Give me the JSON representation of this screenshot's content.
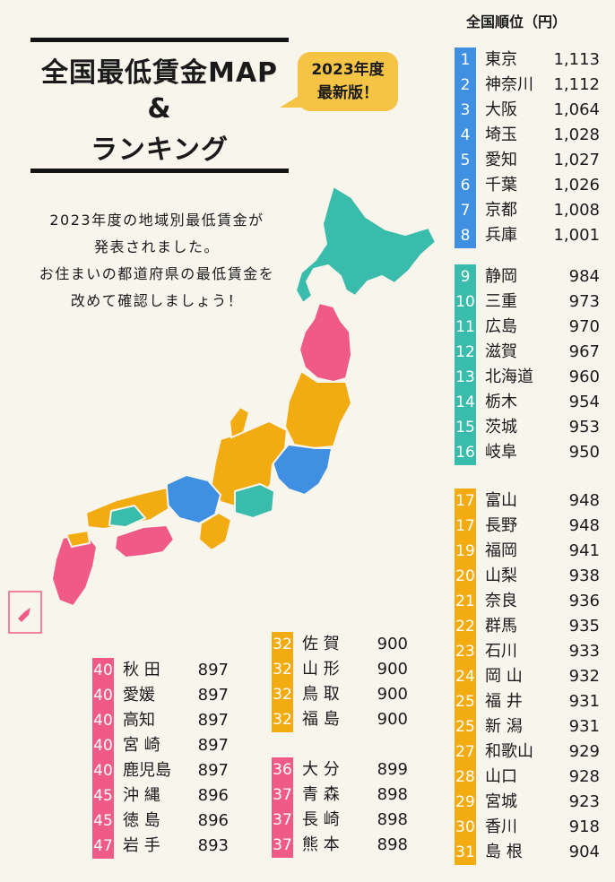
{
  "header": {
    "title_line1": "全国最低賃金MAP",
    "title_line2": "&",
    "title_line3": "ランキング",
    "badge_line1": "2023年度",
    "badge_line2": "最新版！"
  },
  "description": {
    "line1": "2023年度の地域別最低賃金が",
    "line2": "発表されました。",
    "line3": "お住まいの都道府県の最低賃金を",
    "line4": "改めて確認しましょう！"
  },
  "ranking_title": "全国順位（円）",
  "colors": {
    "blue": "#3f8fe3",
    "teal": "#39bcab",
    "orange": "#f3ab12",
    "pink": "#f05a87",
    "background": "#f8f5ed"
  },
  "groups": {
    "blue": [
      {
        "rank": "1",
        "pref": "東京",
        "wage": "1,113"
      },
      {
        "rank": "2",
        "pref": "神奈川",
        "wage": "1,112"
      },
      {
        "rank": "3",
        "pref": "大阪",
        "wage": "1,064"
      },
      {
        "rank": "4",
        "pref": "埼玉",
        "wage": "1,028"
      },
      {
        "rank": "5",
        "pref": "愛知",
        "wage": "1,027"
      },
      {
        "rank": "6",
        "pref": "千葉",
        "wage": "1,026"
      },
      {
        "rank": "7",
        "pref": "京都",
        "wage": "1,008"
      },
      {
        "rank": "8",
        "pref": "兵庫",
        "wage": "1,001"
      }
    ],
    "teal": [
      {
        "rank": "9",
        "pref": "静岡",
        "wage": "984"
      },
      {
        "rank": "10",
        "pref": "三重",
        "wage": "973"
      },
      {
        "rank": "11",
        "pref": "広島",
        "wage": "970"
      },
      {
        "rank": "12",
        "pref": "滋賀",
        "wage": "967"
      },
      {
        "rank": "13",
        "pref": "北海道",
        "wage": "960"
      },
      {
        "rank": "14",
        "pref": "栃木",
        "wage": "954"
      },
      {
        "rank": "15",
        "pref": "茨城",
        "wage": "953"
      },
      {
        "rank": "16",
        "pref": "岐阜",
        "wage": "950"
      }
    ],
    "orange_right": [
      {
        "rank": "17",
        "pref": "富山",
        "wage": "948"
      },
      {
        "rank": "17",
        "pref": "長野",
        "wage": "948"
      },
      {
        "rank": "19",
        "pref": "福岡",
        "wage": "941"
      },
      {
        "rank": "20",
        "pref": "山梨",
        "wage": "938"
      },
      {
        "rank": "21",
        "pref": "奈良",
        "wage": "936"
      },
      {
        "rank": "22",
        "pref": "群馬",
        "wage": "935"
      },
      {
        "rank": "23",
        "pref": "石川",
        "wage": "933"
      },
      {
        "rank": "24",
        "pref": "岡 山",
        "wage": "932"
      },
      {
        "rank": "25",
        "pref": "福 井",
        "wage": "931"
      },
      {
        "rank": "25",
        "pref": "新 潟",
        "wage": "931"
      },
      {
        "rank": "27",
        "pref": "和歌山",
        "wage": "929"
      },
      {
        "rank": "28",
        "pref": "山口",
        "wage": "928"
      },
      {
        "rank": "29",
        "pref": "宮城",
        "wage": "923"
      },
      {
        "rank": "30",
        "pref": "香川",
        "wage": "918"
      },
      {
        "rank": "31",
        "pref": "島 根",
        "wage": "904"
      }
    ],
    "orange_mid": [
      {
        "rank": "32",
        "pref": "佐 賀",
        "wage": "900"
      },
      {
        "rank": "32",
        "pref": "山 形",
        "wage": "900"
      },
      {
        "rank": "32",
        "pref": "鳥 取",
        "wage": "900"
      },
      {
        "rank": "32",
        "pref": "福 島",
        "wage": "900"
      }
    ],
    "pink_mid": [
      {
        "rank": "36",
        "pref": "大 分",
        "wage": "899"
      },
      {
        "rank": "37",
        "pref": "青 森",
        "wage": "898"
      },
      {
        "rank": "37",
        "pref": "長 崎",
        "wage": "898"
      },
      {
        "rank": "37",
        "pref": "熊 本",
        "wage": "898"
      }
    ],
    "pink_left": [
      {
        "rank": "40",
        "pref": "秋 田",
        "wage": "897"
      },
      {
        "rank": "40",
        "pref": "愛媛",
        "wage": "897"
      },
      {
        "rank": "40",
        "pref": "高知",
        "wage": "897"
      },
      {
        "rank": "40",
        "pref": "宮 崎",
        "wage": "897"
      },
      {
        "rank": "40",
        "pref": "鹿児島",
        "wage": "897"
      },
      {
        "rank": "45",
        "pref": "沖 縄",
        "wage": "896"
      },
      {
        "rank": "45",
        "pref": "徳 島",
        "wage": "896"
      },
      {
        "rank": "47",
        "pref": "岩 手",
        "wage": "893"
      }
    ]
  }
}
